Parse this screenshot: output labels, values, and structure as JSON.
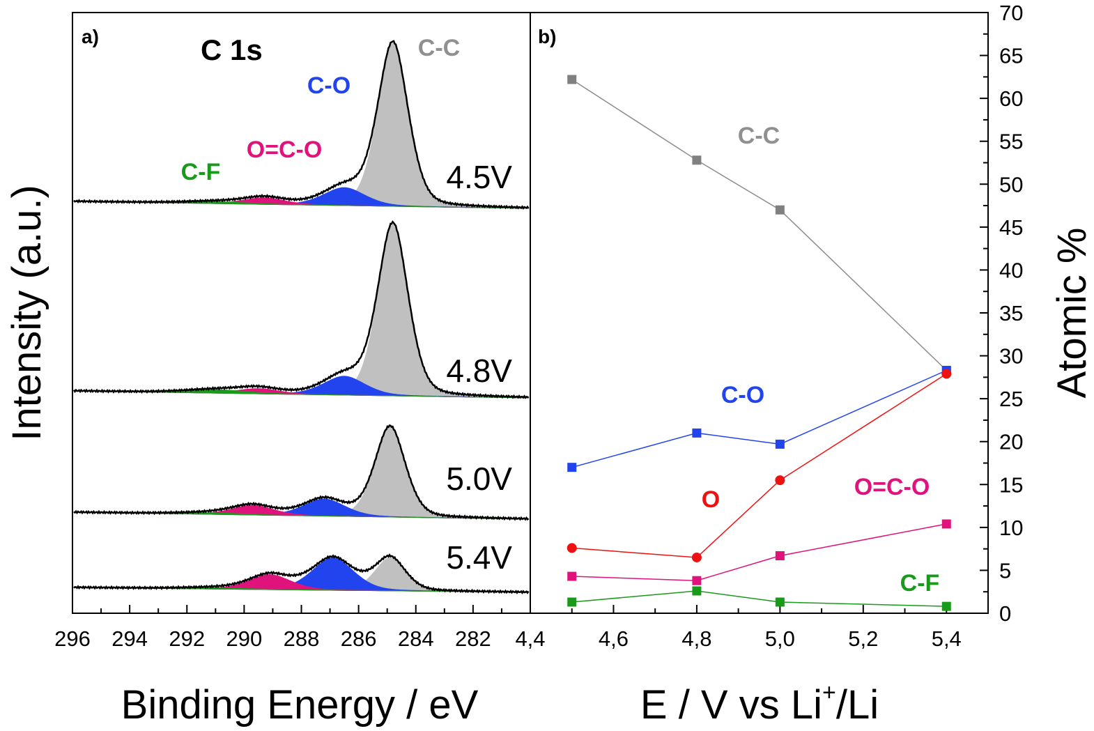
{
  "chart_data": [
    {
      "panel_label": "a)",
      "type": "area",
      "title": "C 1s",
      "xlabel": "Binding Energy / eV",
      "ylabel": "Intensity (a.u.)",
      "xlim": [
        296,
        280
      ],
      "x_ticks": [
        "296",
        "294",
        "292",
        "290",
        "288",
        "286",
        "284",
        "282"
      ],
      "stack": [
        {
          "label": "4.5V",
          "components": [
            {
              "name": "C-C",
              "center_eV": 284.8,
              "height": 1.0,
              "color": "#c0c0c0"
            },
            {
              "name": "C-O",
              "center_eV": 286.5,
              "height": 0.11,
              "color": "#2244ee"
            },
            {
              "name": "O=C-O",
              "center_eV": 289.3,
              "height": 0.04,
              "color": "#e0127c"
            },
            {
              "name": "C-F",
              "center_eV": 291.0,
              "height": 0.012,
              "color": "#1a9a1a"
            }
          ]
        },
        {
          "label": "4.8V",
          "components": [
            {
              "name": "C-C",
              "center_eV": 284.8,
              "height": 1.0,
              "color": "#c0c0c0"
            },
            {
              "name": "C-O",
              "center_eV": 286.5,
              "height": 0.11,
              "color": "#2244ee"
            },
            {
              "name": "O=C-O",
              "center_eV": 289.5,
              "height": 0.03,
              "color": "#e0127c"
            },
            {
              "name": "C-F",
              "center_eV": 291.0,
              "height": 0.02,
              "color": "#1a9a1a"
            }
          ]
        },
        {
          "label": "5.0V",
          "components": [
            {
              "name": "C-C",
              "center_eV": 284.9,
              "height": 0.85,
              "color": "#c0c0c0"
            },
            {
              "name": "C-O",
              "center_eV": 287.2,
              "height": 0.16,
              "color": "#2244ee"
            },
            {
              "name": "O=C-O",
              "center_eV": 289.7,
              "height": 0.09,
              "color": "#e0127c"
            },
            {
              "name": "C-F",
              "center_eV": 291.2,
              "height": 0.015,
              "color": "#1a9a1a"
            }
          ]
        },
        {
          "label": "5.4V",
          "components": [
            {
              "name": "C-C",
              "center_eV": 284.9,
              "height": 0.51,
              "color": "#c0c0c0"
            },
            {
              "name": "C-O",
              "center_eV": 286.9,
              "height": 0.5,
              "color": "#2244ee"
            },
            {
              "name": "O=C-O",
              "center_eV": 289.1,
              "height": 0.23,
              "color": "#e0127c"
            },
            {
              "name": "C-F",
              "center_eV": 291.0,
              "height": 0.02,
              "color": "#1a9a1a"
            }
          ]
        }
      ],
      "annotations": [
        {
          "text": "C-C",
          "color": "#909090"
        },
        {
          "text": "C-O",
          "color": "#2244ee"
        },
        {
          "text": "O=C-O",
          "color": "#e0127c"
        },
        {
          "text": "C-F",
          "color": "#1a9a1a"
        }
      ]
    },
    {
      "panel_label": "b)",
      "type": "line",
      "xlabel_main": "E / V vs Li",
      "xlabel_sup": "+",
      "xlabel_tail": "/Li",
      "ylabel": "Atomic %",
      "xlim": [
        4.4,
        5.5
      ],
      "ylim": [
        0,
        70
      ],
      "x_ticks": [
        "4,4",
        "4,6",
        "4,8",
        "5,0",
        "5,2",
        "5,4"
      ],
      "x_tick_values": [
        4.4,
        4.6,
        4.8,
        5.0,
        5.2,
        5.4
      ],
      "y_ticks": [
        "0",
        "5",
        "10",
        "15",
        "20",
        "25",
        "30",
        "35",
        "40",
        "45",
        "50",
        "55",
        "60",
        "65",
        "70"
      ],
      "x": [
        4.5,
        4.8,
        5.0,
        5.4
      ],
      "series": [
        {
          "name": "C-C",
          "marker": "square",
          "color": "#808080",
          "line_color": "#8c8c8c",
          "values": [
            62.2,
            52.8,
            47.0,
            28.3
          ]
        },
        {
          "name": "C-O",
          "marker": "square",
          "color": "#2244ee",
          "line_color": "#2244ee",
          "values": [
            17.0,
            21.0,
            19.7,
            28.3
          ]
        },
        {
          "name": "O",
          "marker": "circle",
          "color": "#ee1111",
          "line_color": "#ee1111",
          "values": [
            7.6,
            6.5,
            15.5,
            27.9
          ]
        },
        {
          "name": "O=C-O",
          "marker": "square",
          "color": "#e0127c",
          "line_color": "#e0127c",
          "values": [
            4.3,
            3.8,
            6.7,
            10.4
          ]
        },
        {
          "name": "C-F",
          "marker": "square",
          "color": "#1a9a1a",
          "line_color": "#1a9a1a",
          "values": [
            1.3,
            2.6,
            1.3,
            0.8
          ]
        }
      ]
    }
  ]
}
